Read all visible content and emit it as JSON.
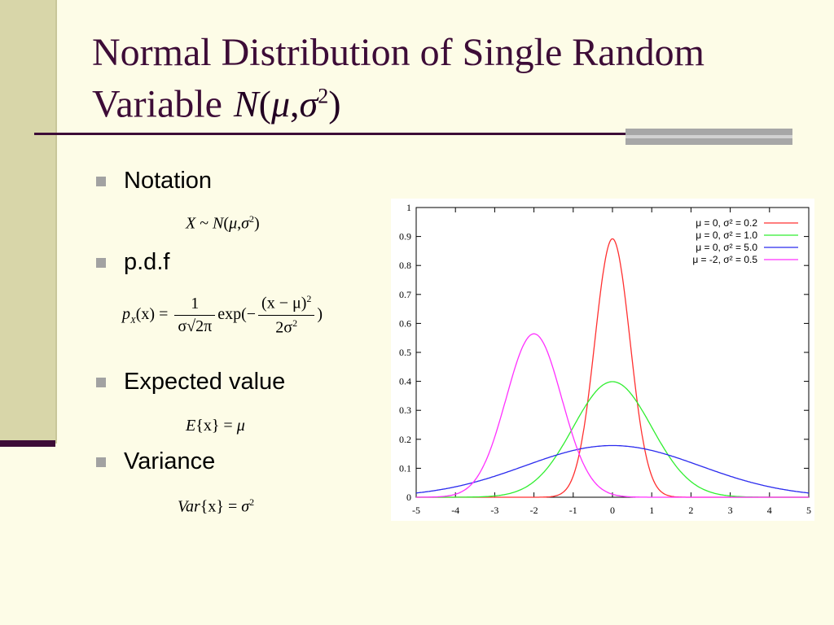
{
  "slide": {
    "title_line1": "Normal Distribution of Single Random",
    "title_line2": "Variable",
    "title_math": {
      "N": "N",
      "open": "(",
      "mu": "μ",
      "comma": ",",
      "sigma": "σ",
      "sq": "2",
      "close": ")"
    }
  },
  "bullets": [
    {
      "label": "Notation"
    },
    {
      "label": "p.d.f"
    },
    {
      "label": "Expected value"
    },
    {
      "label": "Variance"
    }
  ],
  "equations": {
    "notation": {
      "X": "X",
      "tilde": " ~ ",
      "N": "N",
      "open": "(",
      "mu": "μ",
      "comma": ",",
      "sigma": "σ",
      "sq": "2",
      "close": ")"
    },
    "pdf": {
      "p": "p",
      "X": "X",
      "arg": "(x)",
      "eq": " = ",
      "frac1_num": "1",
      "frac1_den": "σ√2π",
      "exp": "exp(−",
      "frac2_num": "(x − μ)",
      "frac2_num_sq": "2",
      "frac2_den": "2σ",
      "frac2_den_sq": "2",
      "close": ")"
    },
    "expected": {
      "E": "E",
      "arg": "{x}",
      "eq": " = ",
      "mu": "μ"
    },
    "variance": {
      "Var": "Var",
      "arg": "{x}",
      "eq": " = ",
      "sigma": "σ",
      "sq": "2"
    }
  },
  "chart_data": {
    "type": "line",
    "title": "",
    "xlabel": "",
    "ylabel": "",
    "xlim": [
      -5,
      5
    ],
    "ylim": [
      0,
      1
    ],
    "xticks": [
      "-5",
      "-4",
      "-3",
      "-2",
      "-1",
      "0",
      "1",
      "2",
      "3",
      "4",
      "5"
    ],
    "yticks": [
      "0",
      "0.1",
      "0.2",
      "0.3",
      "0.4",
      "0.5",
      "0.6",
      "0.7",
      "0.8",
      "0.9",
      "1"
    ],
    "grid": false,
    "legend_position": "top-right",
    "series": [
      {
        "name": "μ =  0, σ² = 0.2",
        "mu": 0,
        "variance": 0.2,
        "color": "#ff3030",
        "x": [
          -2,
          -1.5,
          -1,
          -0.75,
          -0.5,
          -0.25,
          0,
          0.25,
          0.5,
          0.75,
          1,
          1.5,
          2
        ],
        "y": [
          0.0,
          0.003,
          0.073,
          0.218,
          0.477,
          0.764,
          0.892,
          0.764,
          0.477,
          0.218,
          0.073,
          0.003,
          0.0
        ]
      },
      {
        "name": "μ =  0, σ² = 1.0",
        "mu": 0,
        "variance": 1.0,
        "color": "#30ee30",
        "x": [
          -4,
          -3,
          -2,
          -1.5,
          -1,
          -0.5,
          0,
          0.5,
          1,
          1.5,
          2,
          3,
          4
        ],
        "y": [
          0.0001,
          0.004,
          0.054,
          0.13,
          0.242,
          0.352,
          0.399,
          0.352,
          0.242,
          0.13,
          0.054,
          0.004,
          0.0001
        ]
      },
      {
        "name": "μ =  0, σ² = 5.0",
        "mu": 0,
        "variance": 5.0,
        "color": "#2a2aee",
        "x": [
          -5,
          -4,
          -3,
          -2,
          -1,
          0,
          1,
          2,
          3,
          4,
          5
        ],
        "y": [
          0.015,
          0.036,
          0.073,
          0.12,
          0.161,
          0.178,
          0.161,
          0.12,
          0.073,
          0.036,
          0.015
        ]
      },
      {
        "name": "μ = -2, σ² = 0.5",
        "mu": -2,
        "variance": 0.5,
        "color": "#ff30ff",
        "x": [
          -5,
          -4,
          -3.5,
          -3,
          -2.5,
          -2,
          -1.5,
          -1,
          -0.5,
          0,
          1
        ],
        "y": [
          0.0,
          0.01,
          0.059,
          0.208,
          0.439,
          0.564,
          0.439,
          0.208,
          0.059,
          0.01,
          0.0
        ]
      }
    ]
  }
}
